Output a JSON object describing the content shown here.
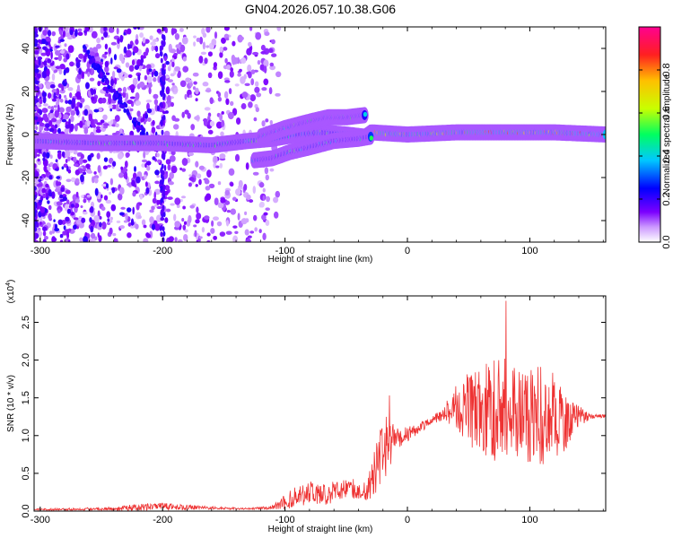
{
  "title": "GN04.2026.057.10.38.G06",
  "chart_data": [
    {
      "type": "heatmap",
      "name": "spectrogram",
      "xlabel": "Height of straight line (km)",
      "ylabel": "Frequency (Hz)",
      "xlim": [
        -305,
        162
      ],
      "ylim": [
        -50,
        50
      ],
      "xticks": [
        -300,
        -200,
        -100,
        0,
        100
      ],
      "xtick_labels": [
        "-300",
        "-200",
        "-100",
        "0",
        "100"
      ],
      "yticks": [
        -40,
        -20,
        0,
        20,
        40
      ],
      "ytick_labels": [
        "-40",
        "-20",
        "0",
        "20",
        "40"
      ],
      "colorbar": {
        "label": "Normalized spectral amplitude",
        "range": [
          0.0,
          1.0
        ],
        "ticks": [
          0.0,
          0.2,
          0.4,
          0.6,
          0.8
        ],
        "tick_labels": [
          "0.0",
          "0.2",
          "0.4",
          "0.6",
          "0.8"
        ],
        "colors": [
          "#ffffff",
          "#7b00ff",
          "#0000ff",
          "#00c8ff",
          "#00ff60",
          "#c8ff00",
          "#ffc000",
          "#ff2020",
          "#ff0090"
        ]
      },
      "ridges": [
        {
          "name": "main-track",
          "points": [
            [
              -305,
              -3
            ],
            [
              -250,
              -4
            ],
            [
              -200,
              -4
            ],
            [
              -160,
              -5
            ],
            [
              -130,
              -3
            ],
            [
              -110,
              -2
            ],
            [
              -90,
              0
            ],
            [
              -70,
              1
            ],
            [
              -50,
              0
            ],
            [
              -35,
              -1
            ],
            [
              -30,
              1
            ],
            [
              0,
              0
            ],
            [
              40,
              1
            ],
            [
              80,
              1
            ],
            [
              120,
              1
            ],
            [
              162,
              0
            ]
          ]
        },
        {
          "name": "upper-branch",
          "points": [
            [
              -120,
              -1
            ],
            [
              -100,
              3
            ],
            [
              -80,
              6
            ],
            [
              -65,
              8
            ],
            [
              -50,
              8
            ],
            [
              -35,
              9
            ]
          ]
        },
        {
          "name": "lower-branch",
          "points": [
            [
              -125,
              -12
            ],
            [
              -110,
              -11
            ],
            [
              -95,
              -8
            ],
            [
              -80,
              -6
            ],
            [
              -60,
              -3
            ],
            [
              -40,
              -2
            ],
            [
              -30,
              -1
            ]
          ]
        }
      ]
    },
    {
      "type": "line",
      "name": "snr",
      "xlabel": "Height of straight line (km)",
      "ylabel": "SNR (10 * v/v)",
      "y_multiplier_label": "(x10",
      "y_multiplier_exp": "4",
      "xlim": [
        -305,
        162
      ],
      "ylim": [
        0,
        2.85
      ],
      "xticks": [
        -300,
        -200,
        -100,
        0,
        100
      ],
      "xtick_labels": [
        "-300",
        "-200",
        "-100",
        "0",
        "100"
      ],
      "yticks": [
        0.0,
        0.5,
        1.0,
        1.5,
        2.0,
        2.5
      ],
      "ytick_labels": [
        "0.0",
        "0.5",
        "1.0",
        "1.5",
        "2.0",
        "2.5"
      ],
      "color": "#ee3333",
      "envelope": {
        "x": [
          -305,
          -250,
          -215,
          -200,
          -160,
          -130,
          -110,
          -100,
          -90,
          -80,
          -70,
          -60,
          -50,
          -40,
          -30,
          -25,
          -20,
          -15,
          -10,
          0,
          10,
          20,
          30,
          40,
          50,
          60,
          70,
          80,
          90,
          100,
          110,
          120,
          130,
          140,
          150,
          162
        ],
        "base": [
          0.02,
          0.03,
          0.05,
          0.06,
          0.04,
          0.03,
          0.05,
          0.12,
          0.2,
          0.25,
          0.22,
          0.25,
          0.3,
          0.28,
          0.35,
          0.6,
          0.8,
          0.9,
          0.95,
          1.02,
          1.1,
          1.2,
          1.3,
          1.38,
          1.35,
          1.3,
          1.35,
          1.4,
          1.3,
          1.3,
          1.25,
          1.25,
          1.2,
          1.25,
          1.25,
          1.26
        ],
        "amp": [
          0.01,
          0.02,
          0.05,
          0.05,
          0.02,
          0.01,
          0.03,
          0.1,
          0.15,
          0.15,
          0.15,
          0.15,
          0.12,
          0.15,
          0.2,
          0.35,
          0.4,
          0.4,
          0.15,
          0.1,
          0.08,
          0.05,
          0.1,
          0.3,
          0.5,
          0.6,
          0.7,
          0.7,
          0.6,
          0.7,
          0.65,
          0.6,
          0.4,
          0.15,
          0.03,
          0.02
        ]
      }
    }
  ]
}
